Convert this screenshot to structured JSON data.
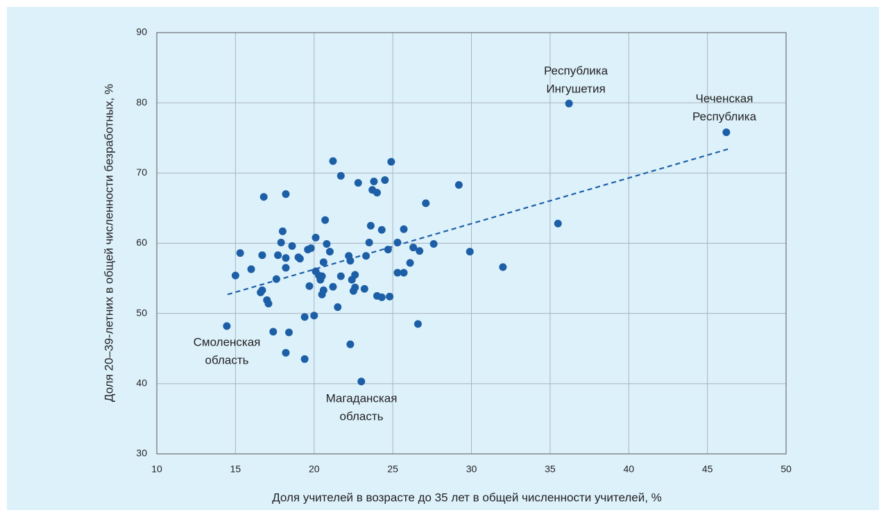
{
  "chart_data": {
    "type": "scatter",
    "xlabel": "Доля учителей в возрасте до 35 лет в общей численности учителей, %",
    "ylabel": "Доля 20–39-летних в общей численности безработных, %",
    "xlim": [
      10,
      50
    ],
    "xticks": [
      10,
      15,
      20,
      25,
      30,
      35,
      40,
      45,
      50
    ],
    "ylim": [
      30,
      90
    ],
    "yticks": [
      30,
      40,
      50,
      60,
      70,
      80,
      90
    ],
    "grid": true,
    "color": "#1d5fa6",
    "x": [
      14.45,
      15.0,
      15.3,
      16.0,
      16.6,
      16.7,
      16.7,
      16.8,
      17.0,
      17.1,
      17.4,
      17.6,
      17.7,
      17.9,
      18.0,
      18.2,
      18.2,
      18.2,
      18.2,
      18.4,
      18.6,
      19.0,
      19.1,
      19.4,
      19.4,
      19.6,
      19.7,
      19.8,
      20.0,
      20.1,
      20.1,
      20.3,
      20.4,
      20.5,
      20.4,
      20.5,
      20.6,
      20.6,
      20.7,
      20.8,
      21.0,
      21.2,
      21.2,
      21.5,
      21.7,
      21.7,
      22.2,
      22.3,
      22.3,
      22.4,
      22.5,
      22.6,
      22.6,
      22.8,
      23.0,
      23.2,
      23.3,
      23.5,
      23.6,
      23.7,
      23.8,
      24.0,
      24.0,
      24.3,
      24.3,
      24.5,
      24.7,
      24.8,
      24.9,
      25.3,
      25.3,
      25.7,
      25.7,
      26.1,
      26.3,
      26.6,
      26.7,
      27.1,
      27.6,
      29.2,
      29.9,
      32.0,
      35.5,
      36.2,
      46.2
    ],
    "y": [
      48.2,
      55.4,
      58.6,
      56.3,
      53.0,
      53.3,
      58.3,
      66.6,
      51.9,
      51.4,
      47.4,
      54.9,
      58.3,
      60.1,
      61.7,
      67.0,
      57.9,
      56.5,
      44.4,
      47.3,
      59.6,
      58.0,
      57.8,
      49.5,
      43.5,
      59.1,
      53.9,
      59.3,
      49.7,
      60.8,
      56.0,
      55.4,
      55.1,
      55.3,
      54.8,
      52.7,
      53.3,
      57.3,
      63.3,
      59.9,
      58.8,
      53.8,
      71.7,
      50.9,
      55.3,
      69.6,
      58.2,
      45.6,
      57.5,
      54.8,
      53.2,
      53.7,
      55.5,
      68.6,
      40.3,
      53.5,
      58.2,
      60.1,
      62.5,
      67.6,
      68.8,
      67.2,
      52.5,
      61.9,
      52.3,
      69.0,
      59.1,
      52.4,
      71.6,
      60.1,
      55.8,
      55.8,
      62.0,
      57.2,
      59.4,
      48.5,
      58.9,
      65.7,
      59.9,
      68.3,
      58.8,
      56.6,
      62.8,
      79.9,
      75.8
    ],
    "trendline": {
      "x": [
        14.5,
        46.3
      ],
      "y": [
        52.7,
        73.4
      ],
      "color": "#1d5fa6"
    },
    "annotations": [
      {
        "lines": [
          "Республика",
          "Ингушетия"
        ]
      },
      {
        "lines": [
          "Чеченская",
          "Республика"
        ]
      },
      {
        "lines": [
          "Смоленская",
          "область"
        ]
      },
      {
        "lines": [
          "Магаданская",
          "область"
        ]
      }
    ]
  }
}
